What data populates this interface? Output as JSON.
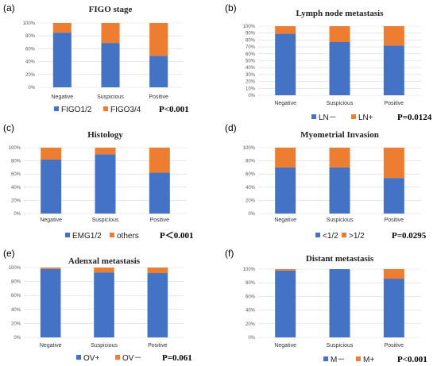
{
  "colors": {
    "series1": "#4472C4",
    "series2": "#ED7D31",
    "grid": "#D9D9D9"
  },
  "chart_data": [
    {
      "label": "(a)",
      "title": "FIGO stage",
      "type": "bar",
      "stacked": true,
      "categories": [
        "Negative",
        "Suspicious",
        "Positive"
      ],
      "y_ticks": [
        "0%",
        "20%",
        "40%",
        "60%",
        "80%",
        "100%"
      ],
      "ylim": [
        0,
        100
      ],
      "series": [
        {
          "name": "FIGO1/2",
          "values": [
            85,
            69,
            49
          ]
        },
        {
          "name": "FIGO3/4",
          "values": [
            15,
            31,
            51
          ]
        }
      ],
      "p_value": "P<0.001",
      "legend": "bottom",
      "grid": true
    },
    {
      "label": "(b)",
      "title": "Lymph node metastasis",
      "type": "bar",
      "stacked": true,
      "categories": [
        "Negative",
        "Suspicious",
        "Positive"
      ],
      "y_ticks": [
        "0%",
        "10%",
        "20%",
        "30%",
        "40%",
        "50%",
        "60%",
        "70%",
        "80%",
        "90%",
        "100%"
      ],
      "ylim": [
        0,
        100
      ],
      "series": [
        {
          "name": "LN－",
          "values": [
            89,
            77,
            72
          ]
        },
        {
          "name": "LN+",
          "values": [
            11,
            23,
            28
          ]
        }
      ],
      "p_value": "P=0.0124",
      "legend": "bottom",
      "grid": true
    },
    {
      "label": "(c)",
      "title": "Histology",
      "type": "bar",
      "stacked": true,
      "categories": [
        "Negative",
        "Suspicious",
        "Positive"
      ],
      "y_ticks": [
        "0%",
        "20%",
        "40%",
        "60%",
        "80%",
        "100%"
      ],
      "ylim": [
        0,
        100
      ],
      "series": [
        {
          "name": "EMG1/2",
          "values": [
            82,
            90,
            62
          ]
        },
        {
          "name": "others",
          "values": [
            18,
            10,
            38
          ]
        }
      ],
      "p_value": "P＜0.001",
      "legend": "bottom",
      "grid": true
    },
    {
      "label": "(d)",
      "title": "Myometrial Invasion",
      "type": "bar",
      "stacked": true,
      "categories": [
        "Negative",
        "Suspicious",
        "Positive"
      ],
      "y_ticks": [
        "0%",
        "20%",
        "40%",
        "60%",
        "80%",
        "100%"
      ],
      "ylim": [
        0,
        100
      ],
      "series": [
        {
          "name": "<1/2",
          "values": [
            70,
            70,
            54
          ]
        },
        {
          "name": ">1/2",
          "values": [
            30,
            30,
            46
          ]
        }
      ],
      "p_value": "P=0.0295",
      "legend": "bottom",
      "grid": true
    },
    {
      "label": "(e)",
      "title": "Adenxal metastasis",
      "type": "bar",
      "stacked": true,
      "categories": [
        "Negative",
        "Suspicious",
        "Positive"
      ],
      "y_ticks": [
        "0%",
        "20%",
        "40%",
        "60%",
        "80%",
        "100%"
      ],
      "ylim": [
        0,
        100
      ],
      "series": [
        {
          "name": "OV+",
          "values": [
            98,
            93,
            92
          ]
        },
        {
          "name": "OV－",
          "values": [
            2,
            7,
            8
          ]
        }
      ],
      "p_value": "P=0.061",
      "legend": "bottom",
      "grid": true
    },
    {
      "label": "(f)",
      "title": "Distant metastasis",
      "type": "bar",
      "stacked": true,
      "categories": [
        "Negative",
        "Suspicious",
        "Positive"
      ],
      "y_ticks": [
        "0%",
        "20%",
        "40%",
        "60%",
        "80%",
        "100%"
      ],
      "ylim": [
        0,
        100
      ],
      "series": [
        {
          "name": "M－",
          "values": [
            98,
            100,
            86
          ]
        },
        {
          "name": "M+",
          "values": [
            2,
            0,
            14
          ]
        }
      ],
      "p_value": "P<0.001",
      "legend": "bottom",
      "grid": true
    }
  ]
}
